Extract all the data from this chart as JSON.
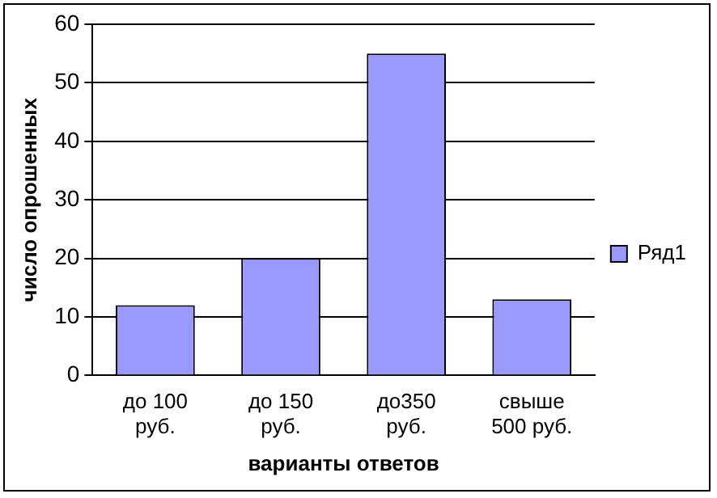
{
  "chart_data": {
    "type": "bar",
    "xlabel": "варианты ответов",
    "ylabel": "число опрошенных",
    "categories": [
      "до 100\nруб.",
      "до 150\nруб.",
      "до350\nруб.",
      "свыше\n500 руб."
    ],
    "series": [
      {
        "name": "Ряд1",
        "color": "#9999ff",
        "values": [
          12,
          20,
          55,
          13
        ]
      }
    ],
    "ylim": [
      0,
      60
    ],
    "yticks": [
      0,
      10,
      20,
      30,
      40,
      50,
      60
    ],
    "grid": "y",
    "legend": "right"
  }
}
